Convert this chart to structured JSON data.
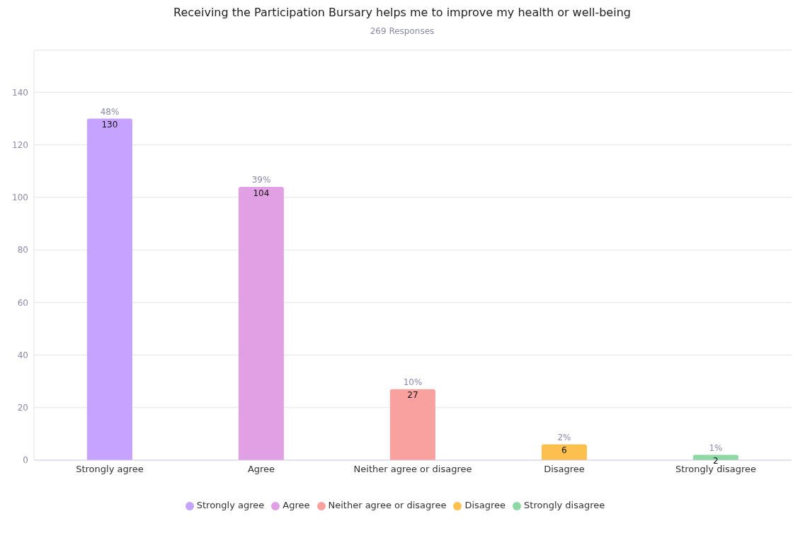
{
  "chart_data": {
    "type": "bar",
    "title": "Receiving the Participation Bursary helps me to improve my health or well-being",
    "subtitle": "269 Responses",
    "categories": [
      "Strongly agree",
      "Agree",
      "Neither agree or disagree",
      "Disagree",
      "Strongly disagree"
    ],
    "series": [
      {
        "name": "Strongly agree",
        "color": "#c5a3ff",
        "values": [
          130,
          null,
          null,
          null,
          null
        ]
      },
      {
        "name": "Agree",
        "color": "#e2a0e4",
        "values": [
          null,
          104,
          null,
          null,
          null
        ]
      },
      {
        "name": "Neither agree or disagree",
        "color": "#f9a19e",
        "values": [
          null,
          null,
          27,
          null,
          null
        ]
      },
      {
        "name": "Disagree",
        "color": "#fdc04f",
        "values": [
          null,
          null,
          null,
          6,
          null
        ]
      },
      {
        "name": "Strongly disagree",
        "color": "#8ed8a4",
        "values": [
          null,
          null,
          null,
          null,
          2
        ]
      }
    ],
    "stacked": true,
    "ylim": [
      0,
      156
    ],
    "yticks": [
      0,
      20,
      40,
      60,
      80,
      100,
      120,
      140
    ],
    "grid": "y",
    "legend": "bottom",
    "data_labels": true,
    "annotations": [
      {
        "text": "48%",
        "x": "Strongly agree",
        "y": 130
      },
      {
        "text": "39%",
        "x": "Agree",
        "y": 104
      },
      {
        "text": "10%",
        "x": "Neither agree or disagree",
        "y": 27
      },
      {
        "text": "2%",
        "x": "Disagree",
        "y": 6
      },
      {
        "text": "1%",
        "x": "Strongly disagree",
        "y": 2
      }
    ]
  }
}
